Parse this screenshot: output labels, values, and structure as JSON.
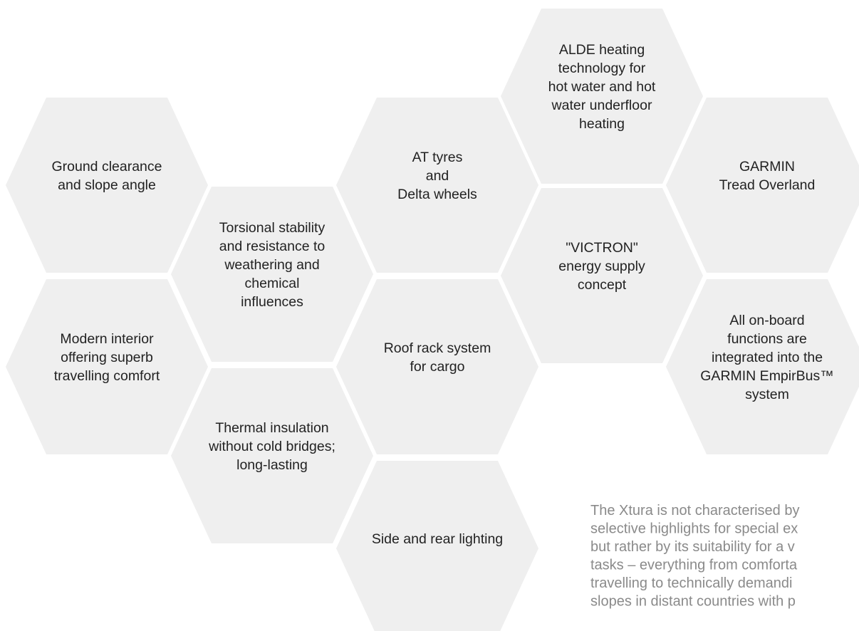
{
  "hexagons": [
    {
      "lines": [
        "Ground clearance",
        "and slope angle"
      ]
    },
    {
      "lines": [
        "Torsional stability",
        "and resistance to",
        "weathering and",
        "chemical",
        "influences"
      ]
    },
    {
      "lines": [
        "AT tyres",
        "and",
        "Delta wheels"
      ]
    },
    {
      "lines": [
        "ALDE heating",
        "technology for",
        "hot water and hot",
        "water underfloor",
        "heating"
      ]
    },
    {
      "lines": [
        "GARMIN",
        "Tread Overland"
      ]
    },
    {
      "lines": [
        "\"VICTRON\"",
        "energy supply",
        "concept"
      ]
    },
    {
      "lines": [
        "Modern interior",
        "offering superb",
        "travelling comfort"
      ]
    },
    {
      "lines": [
        "Roof rack system",
        "for cargo"
      ]
    },
    {
      "lines": [
        "All on-board",
        "functions are",
        "integrated into the",
        "GARMIN EmpirBus™",
        "system"
      ]
    },
    {
      "lines": [
        "Thermal insulation",
        "without cold bridges;",
        "long-lasting"
      ]
    },
    {
      "lines": [
        "Side and rear lighting"
      ]
    }
  ],
  "paragraph": {
    "lines": [
      "The Xtura is not characterised by",
      "selective highlights for special ex",
      "but rather by its suitability for a v",
      "tasks – everything from comforta",
      "travelling to technically demandi",
      "slopes in distant countries with p"
    ]
  }
}
